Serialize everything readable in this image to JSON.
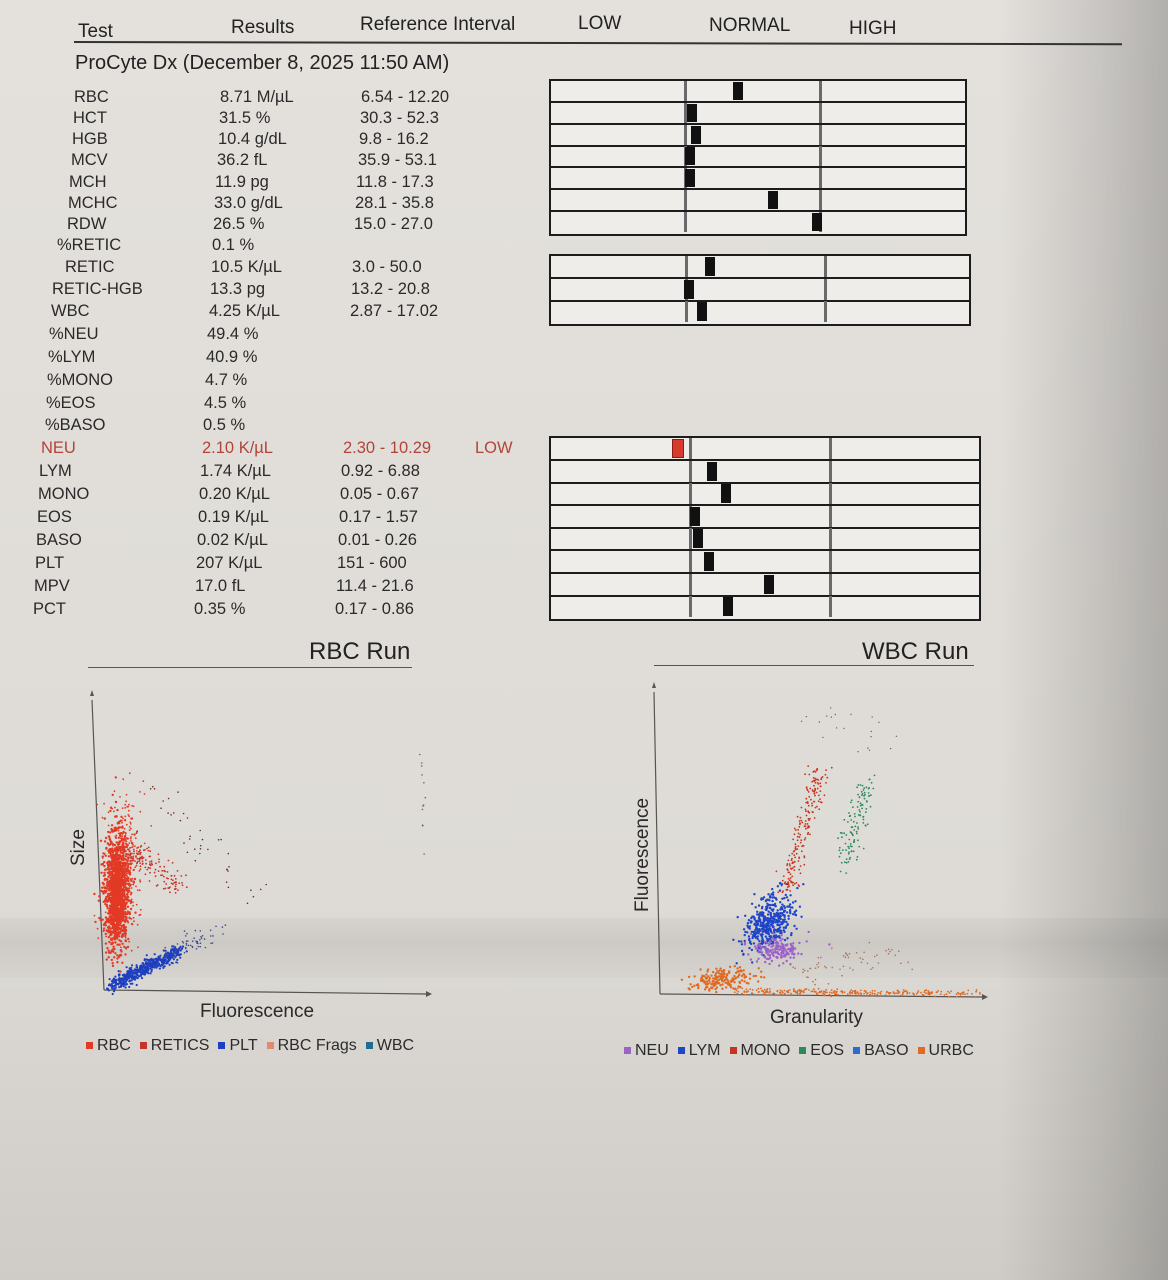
{
  "header": {
    "test": "Test",
    "results": "Results",
    "reference": "Reference Interval",
    "low": "LOW",
    "normal": "NORMAL",
    "high": "HIGH"
  },
  "section_title": "ProCyte Dx (December 8, 2025 11:50 AM)",
  "rows": [
    {
      "test": "RBC",
      "result": "8.71 M/µL",
      "ref": "6.54 - 12.20",
      "flag": "",
      "level": 0.38
    },
    {
      "test": "HCT",
      "result": "31.5 %",
      "ref": "30.3 - 52.3",
      "flag": "",
      "level": 0.04
    },
    {
      "test": "HGB",
      "result": "10.4 g/dL",
      "ref": "9.8 - 16.2",
      "flag": "",
      "level": 0.07
    },
    {
      "test": "MCV",
      "result": "36.2 fL",
      "ref": "35.9 - 53.1",
      "flag": "",
      "level": 0.02
    },
    {
      "test": "MCH",
      "result": "11.9 pg",
      "ref": "11.8 - 17.3",
      "flag": "",
      "level": 0.02
    },
    {
      "test": "MCHC",
      "result": "33.0 g/dL",
      "ref": "28.1 - 35.8",
      "flag": "",
      "level": 0.64
    },
    {
      "test": "RDW",
      "result": "26.5 %",
      "ref": "15.0 - 27.0",
      "flag": "",
      "level": 0.96
    },
    {
      "test": "%RETIC",
      "result": "0.1 %",
      "ref": "",
      "flag": ""
    },
    {
      "test": "RETIC",
      "result": "10.5 K/µL",
      "ref": "3.0 - 50.0",
      "flag": "",
      "level": 0.16
    },
    {
      "test": "RETIC-HGB",
      "result": "13.3 pg",
      "ref": "13.2 - 20.8",
      "flag": "",
      "level": 0.01
    },
    {
      "test": "WBC",
      "result": "4.25 K/µL",
      "ref": "2.87 - 17.02",
      "flag": "",
      "level": 0.1
    },
    {
      "test": "%NEU",
      "result": "49.4 %",
      "ref": "",
      "flag": ""
    },
    {
      "test": "%LYM",
      "result": "40.9 %",
      "ref": "",
      "flag": ""
    },
    {
      "test": "%MONO",
      "result": "4.7 %",
      "ref": "",
      "flag": ""
    },
    {
      "test": "%EOS",
      "result": "4.5 %",
      "ref": "",
      "flag": ""
    },
    {
      "test": "%BASO",
      "result": "0.5 %",
      "ref": "",
      "flag": ""
    },
    {
      "test": "NEU",
      "result": "2.10 K/µL",
      "ref": "2.30 - 10.29",
      "flag": "LOW",
      "level": -0.12
    },
    {
      "test": "LYM",
      "result": "1.74 K/µL",
      "ref": "0.92 - 6.88",
      "flag": "",
      "level": 0.14
    },
    {
      "test": "MONO",
      "result": "0.20 K/µL",
      "ref": "0.05 - 0.67",
      "flag": "",
      "level": 0.24
    },
    {
      "test": "EOS",
      "result": "0.19 K/µL",
      "ref": "0.17 - 1.57",
      "flag": "",
      "level": 0.02
    },
    {
      "test": "BASO",
      "result": "0.02 K/µL",
      "ref": "0.01 - 0.26",
      "flag": "",
      "level": 0.04
    },
    {
      "test": "PLT",
      "result": "207 K/µL",
      "ref": "151 - 600",
      "flag": "",
      "level": 0.12
    },
    {
      "test": "MPV",
      "result": "17.0 fL",
      "ref": "11.4 - 21.6",
      "flag": "",
      "level": 0.55
    },
    {
      "test": "PCT",
      "result": "0.35 %",
      "ref": "0.17 - 0.86",
      "flag": "",
      "level": 0.26
    }
  ],
  "rbc_run": {
    "title": "RBC Run",
    "xlabel": "Fluorescence",
    "ylabel": "Size",
    "legend": [
      {
        "label": "RBC",
        "color": "#e23a25"
      },
      {
        "label": "RETICS",
        "color": "#c4342a"
      },
      {
        "label": "PLT",
        "color": "#1d3fbf"
      },
      {
        "label": "RBC Frags",
        "color": "#e38a6c"
      },
      {
        "label": "WBC",
        "color": "#1f6c8c"
      }
    ]
  },
  "wbc_run": {
    "title": "WBC Run",
    "xlabel": "Granularity",
    "ylabel": "Fluorescence",
    "legend": [
      {
        "label": "NEU",
        "color": "#9b62c8"
      },
      {
        "label": "LYM",
        "color": "#1f45c9"
      },
      {
        "label": "MONO",
        "color": "#c8331f"
      },
      {
        "label": "EOS",
        "color": "#2b8a5c"
      },
      {
        "label": "BASO",
        "color": "#2c6bd0"
      },
      {
        "label": "URBC",
        "color": "#e06a22"
      }
    ]
  }
}
